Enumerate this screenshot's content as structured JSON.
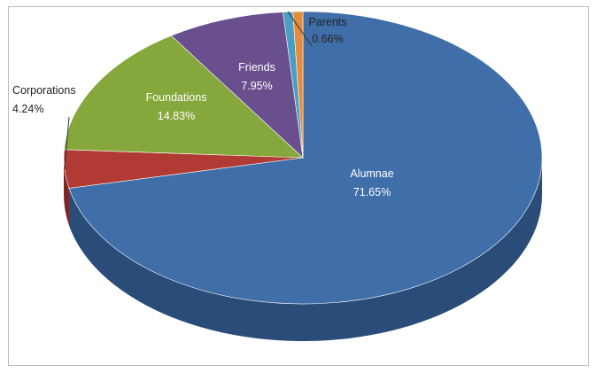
{
  "chart_data": {
    "type": "pie",
    "title": "",
    "slices": [
      {
        "label": "Alumnae",
        "pct_text": "71.65%",
        "value": 71.65,
        "color": "#3f6ea8",
        "side_color": "#2a4c78"
      },
      {
        "label": "Corporations",
        "pct_text": "4.24%",
        "value": 4.24,
        "color": "#b13a35",
        "side_color": "#7c2623"
      },
      {
        "label": "Foundations",
        "pct_text": "14.83%",
        "value": 14.83,
        "color": "#86a73c",
        "side_color": "#5f7a2a"
      },
      {
        "label": "Friends",
        "pct_text": "7.95%",
        "value": 7.95,
        "color": "#6a4f8e",
        "side_color": "#4a3766"
      },
      {
        "label": "Parents",
        "pct_text": "0.66%",
        "value": 0.66,
        "color": "#4a9ec2",
        "side_color": "#2f7a98"
      },
      {
        "label": "",
        "pct_text": "",
        "value": 0.67,
        "color": "#e58b3a",
        "side_color": "#b06422"
      }
    ],
    "style": "3d-pie"
  }
}
